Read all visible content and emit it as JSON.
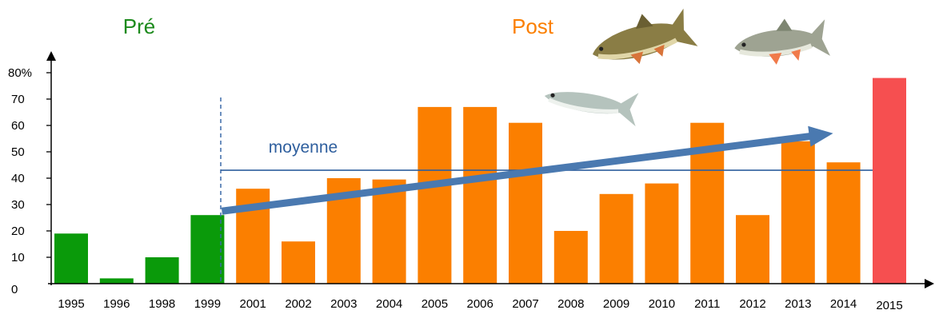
{
  "chart_data": {
    "type": "bar",
    "title": "",
    "xlabel": "",
    "ylabel": "",
    "ylim": [
      0,
      80
    ],
    "y_ticks": [
      "0",
      "10",
      "20",
      "30",
      "40",
      "50",
      "60",
      "70",
      "80%"
    ],
    "categories": [
      "1995",
      "1996",
      "1998",
      "1999",
      "2001",
      "2002",
      "2003",
      "2004",
      "2005",
      "2006",
      "2007",
      "2008",
      "2009",
      "2010",
      "2011",
      "2012",
      "2013",
      "2014",
      "2015"
    ],
    "values": [
      19,
      2,
      10,
      26,
      36,
      16,
      40,
      39.5,
      67,
      67,
      61,
      20,
      34,
      38,
      61,
      26,
      54,
      46,
      78
    ],
    "periods": [
      "pre",
      "pre",
      "pre",
      "pre",
      "post",
      "post",
      "post",
      "post",
      "post",
      "post",
      "post",
      "post",
      "post",
      "post",
      "post",
      "post",
      "post",
      "post",
      "highlight"
    ],
    "period_labels": {
      "pre": "Pré",
      "post": "Post"
    },
    "mean": {
      "label": "moyenne",
      "value": 43
    },
    "trend_arrow": {
      "from": {
        "x": "1999",
        "y": 27.5
      },
      "to": {
        "x": "2014",
        "y": 57
      }
    },
    "grid": false,
    "legend": "none",
    "colors": {
      "pre": "#0a9a0a",
      "post": "#fb7f00",
      "highlight": "#f64f50",
      "mean_line": "#2f5f9e",
      "trend_arrow": "#4a79b0",
      "pre_label": "#1c8a1c",
      "post_label": "#fb7f00",
      "mean_label": "#2f5f9e",
      "axis": "#000000"
    }
  },
  "decorations": {
    "fish": [
      "barbel-fish-icon",
      "nase-fish-icon",
      "bleak-fish-icon"
    ]
  }
}
